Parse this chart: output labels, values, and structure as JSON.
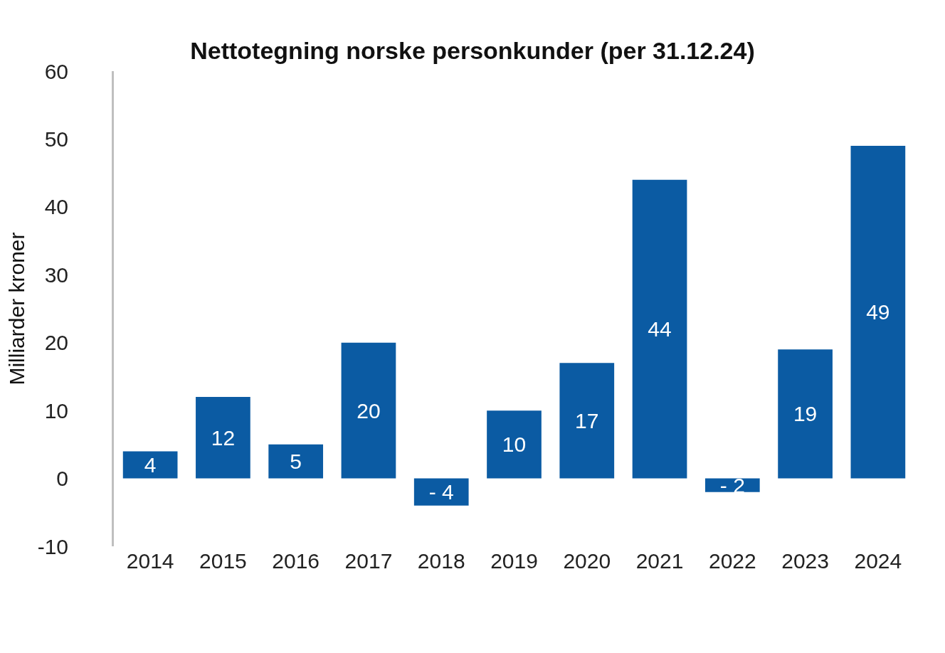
{
  "chart_data": {
    "type": "bar",
    "title": "Nettotegning norske personkunder (per 31.12.24)",
    "ylabel": "Milliarder kroner",
    "categories": [
      "2014",
      "2015",
      "2016",
      "2017",
      "2018",
      "2019",
      "2020",
      "2021",
      "2022",
      "2023",
      "2024"
    ],
    "values": [
      4,
      12,
      5,
      20,
      -4,
      10,
      17,
      44,
      -2,
      19,
      49
    ],
    "value_labels": [
      "4",
      "12",
      "5",
      "20",
      "- 4",
      "10",
      "17",
      "44",
      "- 2",
      "19",
      "49"
    ],
    "color": "#0b5ba3",
    "ylim": [
      -10,
      60
    ],
    "yticks": [
      -10,
      0,
      10,
      20,
      30,
      40,
      50,
      60
    ],
    "grid": false
  }
}
